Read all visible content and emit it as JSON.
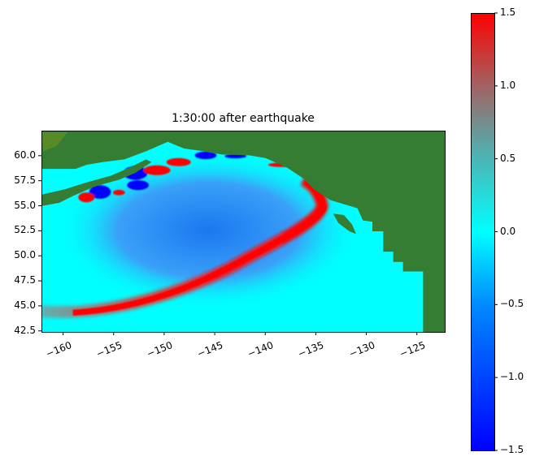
{
  "chart_data": {
    "type": "heatmap",
    "title": "1:30:00 after earthquake",
    "xlabel": "",
    "ylabel": "",
    "xlim": [
      -162.1,
      -122.2
    ],
    "ylim": [
      42.4,
      62.5
    ],
    "xticks": [
      -160,
      -155,
      -150,
      -145,
      -140,
      -135,
      -130,
      -125
    ],
    "xtick_labels": [
      "−160",
      "−155",
      "−150",
      "−145",
      "−140",
      "−135",
      "−130",
      "−125"
    ],
    "yticks": [
      60.0,
      57.5,
      55.0,
      52.5,
      50.0,
      47.5,
      45.0,
      42.5
    ],
    "ytick_labels": [
      "60.0",
      "57.5",
      "55.0",
      "52.5",
      "50.0",
      "47.5",
      "45.0",
      "42.5"
    ],
    "colorbar": {
      "clim": [
        -1.5,
        1.5
      ],
      "ticks": [
        1.5,
        1.0,
        0.5,
        0.0,
        -0.5,
        -1.0,
        -1.5
      ],
      "tick_labels": [
        "1.5",
        "1.0",
        "0.5",
        "0.0",
        "−0.5",
        "−1.0",
        "−1.5"
      ],
      "colors": {
        "-1.5": "#0000ff",
        "-0.5": "#0088ff",
        "0.0": "#00ffff",
        "0.5": "#4cb4b4",
        "1.0": "#a06464",
        "1.5": "#ff0000"
      }
    },
    "land_color": "#367d34",
    "grid": false
  }
}
